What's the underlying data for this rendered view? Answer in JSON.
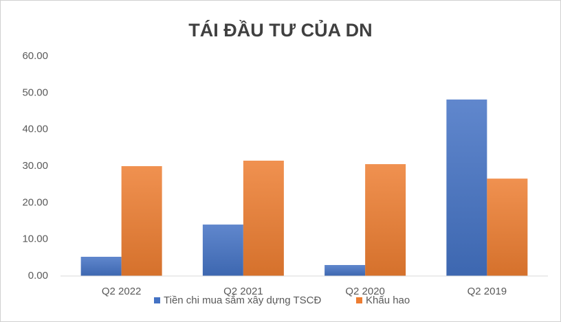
{
  "chart_data": {
    "type": "bar",
    "title": "TÁI ĐẦU TƯ CỦA DN",
    "categories": [
      "Q2 2022",
      "Q2 2021",
      "Q2 2020",
      "Q2 2019"
    ],
    "series": [
      {
        "name": "Tiền chi mua sắm xây dựng TSCĐ",
        "color": "#4472c4",
        "values": [
          5.25,
          14.05,
          3.0,
          48.2
        ]
      },
      {
        "name": "Khấu hao",
        "color": "#ed7d31",
        "values": [
          30.0,
          31.5,
          30.55,
          26.6
        ]
      }
    ],
    "ylim": [
      0,
      60
    ],
    "yticks": [
      {
        "value": 0,
        "label": "0.00"
      },
      {
        "value": 10,
        "label": "10.00"
      },
      {
        "value": 20,
        "label": "20.00"
      },
      {
        "value": 30,
        "label": "30.00"
      },
      {
        "value": 40,
        "label": "40.00"
      },
      {
        "value": 50,
        "label": "50.00"
      },
      {
        "value": 60,
        "label": "60.00"
      }
    ],
    "grid": false,
    "legend": "bottom"
  }
}
